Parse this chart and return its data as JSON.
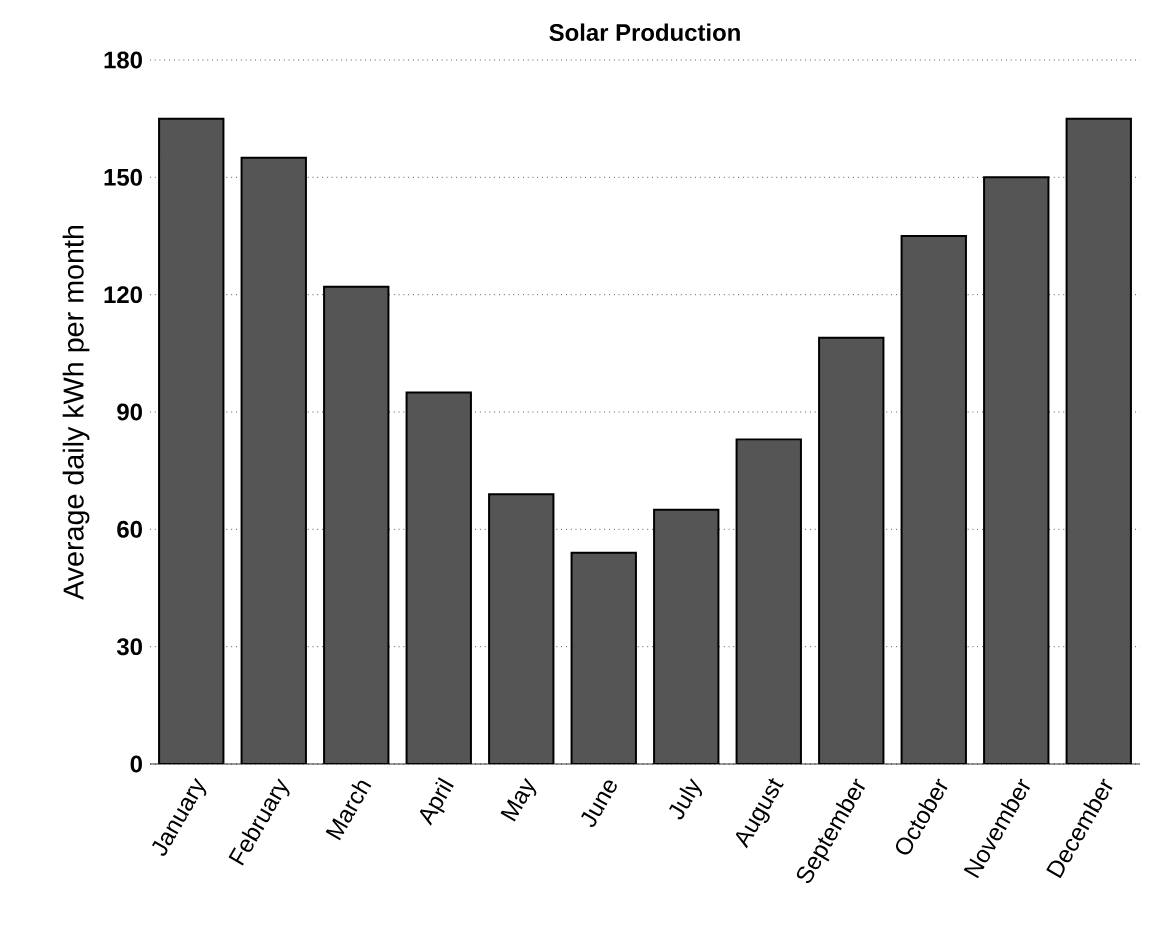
{
  "chart_data": {
    "type": "bar",
    "title": "Solar Production",
    "ylabel": "Average daily kWh per month",
    "categories": [
      "January",
      "February",
      "March",
      "April",
      "May",
      "June",
      "July",
      "August",
      "September",
      "October",
      "November",
      "December"
    ],
    "values": [
      165,
      155,
      122,
      95,
      69,
      54,
      65,
      83,
      109,
      135,
      150,
      165
    ],
    "color": "#555555",
    "ylim": [
      0,
      180
    ],
    "yticks": [
      0,
      30,
      60,
      90,
      120,
      150,
      180
    ],
    "grid": "y"
  }
}
